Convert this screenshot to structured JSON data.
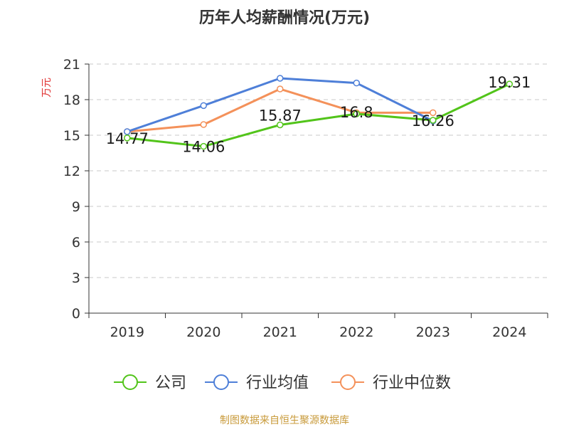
{
  "chart_data": {
    "type": "line",
    "title": "历年人均薪酬情况(万元)",
    "ylabel": "万元",
    "categories": [
      "2019",
      "2020",
      "2021",
      "2022",
      "2023",
      "2024"
    ],
    "ylim": [
      0,
      21
    ],
    "yticks": [
      0,
      3,
      6,
      9,
      12,
      15,
      18,
      21
    ],
    "grid": true,
    "legend_position": "bottom",
    "series": [
      {
        "name": "公司",
        "color": "#52c41a",
        "values": [
          14.77,
          14.06,
          15.87,
          16.8,
          16.26,
          19.31
        ],
        "labels": [
          "14.77",
          "14.06",
          "15.87",
          "16.8",
          "16.26",
          "19.31"
        ]
      },
      {
        "name": "行业均值",
        "color": "#4e7fd8",
        "values": [
          15.3,
          17.5,
          19.8,
          19.4,
          16.2,
          null
        ]
      },
      {
        "name": "行业中位数",
        "color": "#f4915a",
        "values": [
          15.3,
          15.9,
          18.9,
          16.9,
          16.9,
          null
        ]
      }
    ]
  },
  "source": "制图数据来自恒生聚源数据库"
}
